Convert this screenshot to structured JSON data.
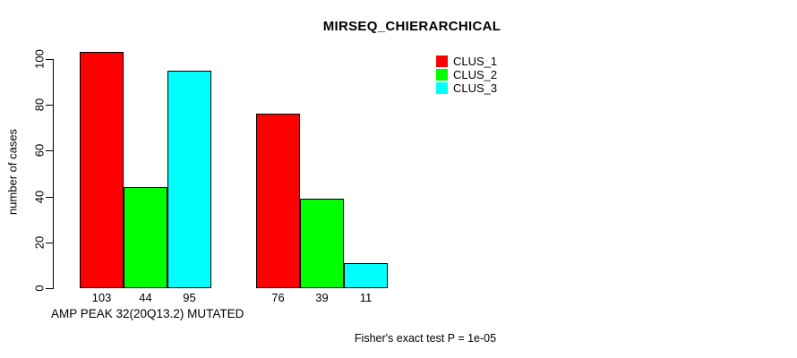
{
  "chart_data": {
    "type": "bar",
    "title": "MIRSEQ_CHIERARCHICAL",
    "ylabel": "number of cases",
    "xlabel": "",
    "ylim": [
      0,
      100
    ],
    "yticks": [
      0,
      20,
      40,
      60,
      80,
      100
    ],
    "grid": false,
    "legend_position": "top-right",
    "series": [
      {
        "name": "CLUS_1",
        "color": "#ff0000"
      },
      {
        "name": "CLUS_2",
        "color": "#00ff00"
      },
      {
        "name": "CLUS_3",
        "color": "#00ffff"
      }
    ],
    "groups": [
      {
        "label": "AMP PEAK 32(20Q13.2) MUTATED",
        "values": [
          103,
          44,
          95
        ]
      },
      {
        "label": "",
        "values": [
          76,
          39,
          11
        ]
      }
    ],
    "bar_value_labels_shown": true,
    "annotation": "Fisher's exact test P = 1e-05"
  },
  "colors": {
    "background": "#ffffff",
    "axis": "#000000",
    "text": "#000000"
  }
}
